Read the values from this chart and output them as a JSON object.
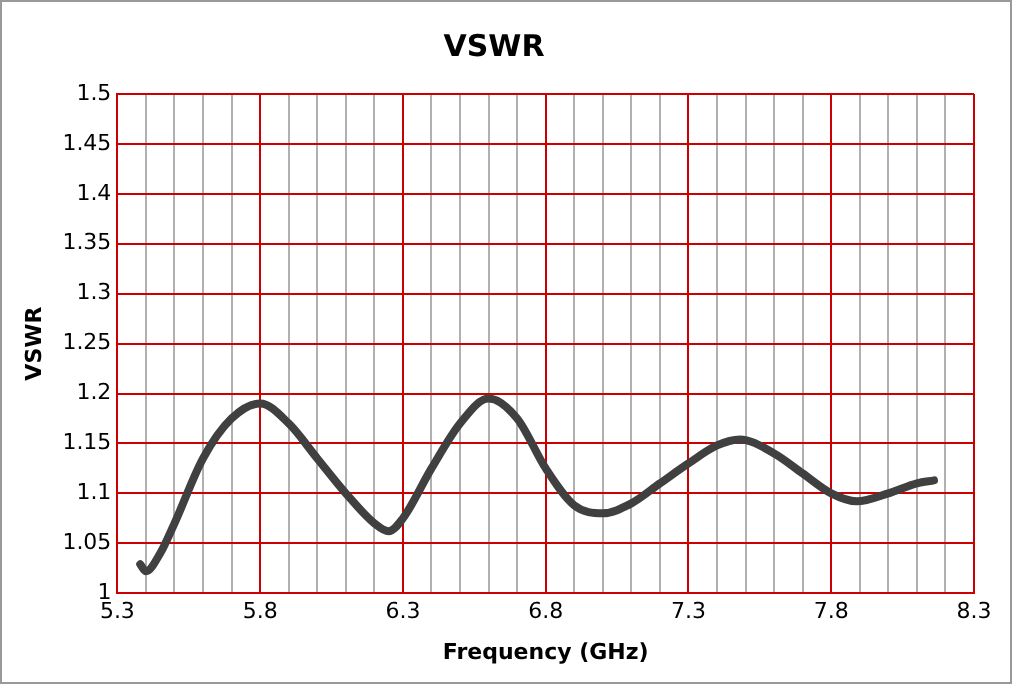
{
  "chart_data": {
    "type": "line",
    "title": "VSWR",
    "xlabel": "Frequency (GHz)",
    "ylabel": "VSWR",
    "series": [
      {
        "color": "#404040",
        "x": [
          5.38,
          5.4,
          5.45,
          5.5,
          5.6,
          5.7,
          5.8,
          5.9,
          6.0,
          6.1,
          6.2,
          6.25,
          6.3,
          6.4,
          6.5,
          6.6,
          6.7,
          6.8,
          6.9,
          7.0,
          7.1,
          7.2,
          7.3,
          7.4,
          7.48,
          7.6,
          7.7,
          7.8,
          7.89,
          8.0,
          8.1,
          8.16
        ],
        "values": [
          1.029,
          1.022,
          1.04,
          1.07,
          1.135,
          1.175,
          1.19,
          1.17,
          1.135,
          1.1,
          1.07,
          1.062,
          1.075,
          1.125,
          1.17,
          1.195,
          1.175,
          1.125,
          1.088,
          1.08,
          1.09,
          1.11,
          1.13,
          1.148,
          1.154,
          1.14,
          1.12,
          1.1,
          1.092,
          1.1,
          1.11,
          1.113
        ]
      }
    ],
    "xlim": [
      5.3,
      8.3
    ],
    "xticks": [
      5.3,
      {
        "value": 5.4,
        "label": null
      },
      {
        "value": 5.5,
        "label": null
      },
      {
        "value": 5.6,
        "label": null
      },
      {
        "value": 5.7,
        "label": null
      },
      5.8,
      {
        "value": 5.9,
        "label": null
      },
      {
        "value": 6.0,
        "label": null
      },
      {
        "value": 6.1,
        "label": null
      },
      {
        "value": 6.2,
        "label": null
      },
      6.3,
      {
        "value": 6.4,
        "label": null
      },
      {
        "value": 6.5,
        "label": null
      },
      {
        "value": 6.6,
        "label": null
      },
      {
        "value": 6.7,
        "label": null
      },
      6.8,
      {
        "value": 6.9,
        "label": null
      },
      {
        "value": 7.0,
        "label": null
      },
      {
        "value": 7.1,
        "label": null
      },
      {
        "value": 7.2,
        "label": null
      },
      7.3,
      {
        "value": 7.4,
        "label": null
      },
      {
        "value": 7.5,
        "label": null
      },
      {
        "value": 7.6,
        "label": null
      },
      {
        "value": 7.7,
        "label": null
      },
      7.8,
      {
        "value": 7.9,
        "label": null
      },
      {
        "value": 8.0,
        "label": null
      },
      {
        "value": 8.1,
        "label": null
      },
      {
        "value": 8.2,
        "label": null
      },
      8.3
    ],
    "ylim": [
      1,
      1.5
    ],
    "yticks": [
      1,
      1.05,
      1.1,
      1.15,
      1.2,
      1.25,
      1.3,
      1.35,
      1.4,
      1.45,
      1.5
    ],
    "grid": true,
    "legend": false,
    "marker": "none",
    "line_style": "solid"
  }
}
